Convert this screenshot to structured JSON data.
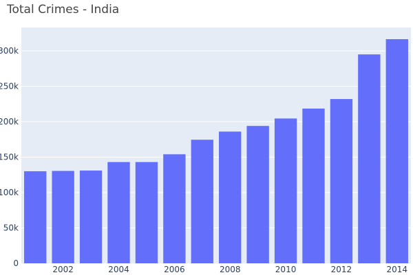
{
  "chart_data": {
    "type": "bar",
    "title": "Total Crimes - India",
    "xlabel": "",
    "ylabel": "",
    "categories": [
      2001,
      2002,
      2003,
      2004,
      2005,
      2006,
      2007,
      2008,
      2009,
      2010,
      2011,
      2012,
      2013,
      2014
    ],
    "values": [
      130000,
      130500,
      131000,
      143000,
      143000,
      154000,
      174500,
      186000,
      194000,
      204500,
      218500,
      232000,
      295000,
      316500
    ],
    "ylim": [
      0,
      333000
    ],
    "xlim": [
      2000.5,
      2014.5
    ],
    "x_ticks": [
      2002,
      2004,
      2006,
      2008,
      2010,
      2012,
      2014
    ],
    "y_ticks": [
      0,
      50000,
      100000,
      150000,
      200000,
      250000,
      300000
    ],
    "y_tick_labels": [
      "0",
      "50k",
      "100k",
      "150k",
      "200k",
      "250k",
      "300k"
    ],
    "grid": true,
    "colors": {
      "bar": "#636efa",
      "plot_background": "#e5ecf6",
      "grid": "#ffffff",
      "tick_text": "#2a3f5f"
    }
  }
}
